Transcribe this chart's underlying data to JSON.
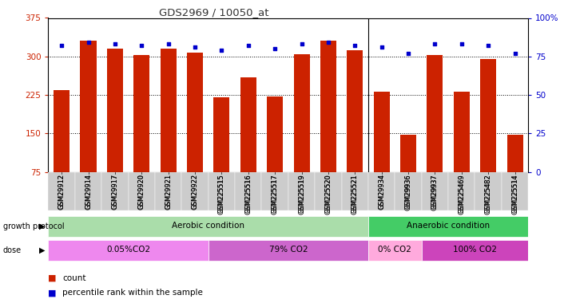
{
  "title": "GDS2969 / 10050_at",
  "samples": [
    "GSM29912",
    "GSM29914",
    "GSM29917",
    "GSM29920",
    "GSM29921",
    "GSM29922",
    "GSM225515",
    "GSM225516",
    "GSM225517",
    "GSM225519",
    "GSM225520",
    "GSM225521",
    "GSM29934",
    "GSM29936",
    "GSM29937",
    "GSM225469",
    "GSM225482",
    "GSM225514"
  ],
  "count_values": [
    235,
    330,
    315,
    302,
    315,
    308,
    220,
    260,
    222,
    305,
    330,
    312,
    232,
    148,
    302,
    232,
    295,
    148
  ],
  "percentile_values": [
    82,
    84,
    83,
    82,
    83,
    81,
    79,
    82,
    80,
    83,
    84,
    82,
    81,
    77,
    83,
    83,
    82,
    77
  ],
  "ylim_left": [
    75,
    375
  ],
  "ylim_right": [
    0,
    100
  ],
  "yticks_left": [
    75,
    150,
    225,
    300,
    375
  ],
  "yticks_right": [
    0,
    25,
    50,
    75,
    100
  ],
  "bar_color": "#cc2200",
  "dot_color": "#0000cc",
  "title_color": "#333333",
  "left_axis_color": "#cc2200",
  "right_axis_color": "#0000cc",
  "growth_protocol_label": "growth protocol",
  "dose_label": "dose",
  "growth_groups": [
    {
      "label": "Aerobic condition",
      "start": 0,
      "end": 11,
      "color": "#aaddaa"
    },
    {
      "label": "Anaerobic condition",
      "start": 12,
      "end": 17,
      "color": "#44cc66"
    }
  ],
  "dose_groups": [
    {
      "label": "0.05%CO2",
      "start": 0,
      "end": 5,
      "color": "#ee88ee"
    },
    {
      "label": "79% CO2",
      "start": 6,
      "end": 11,
      "color": "#cc66cc"
    },
    {
      "label": "0% CO2",
      "start": 12,
      "end": 13,
      "color": "#ffaadd"
    },
    {
      "label": "100% CO2",
      "start": 14,
      "end": 17,
      "color": "#cc44bb"
    }
  ]
}
